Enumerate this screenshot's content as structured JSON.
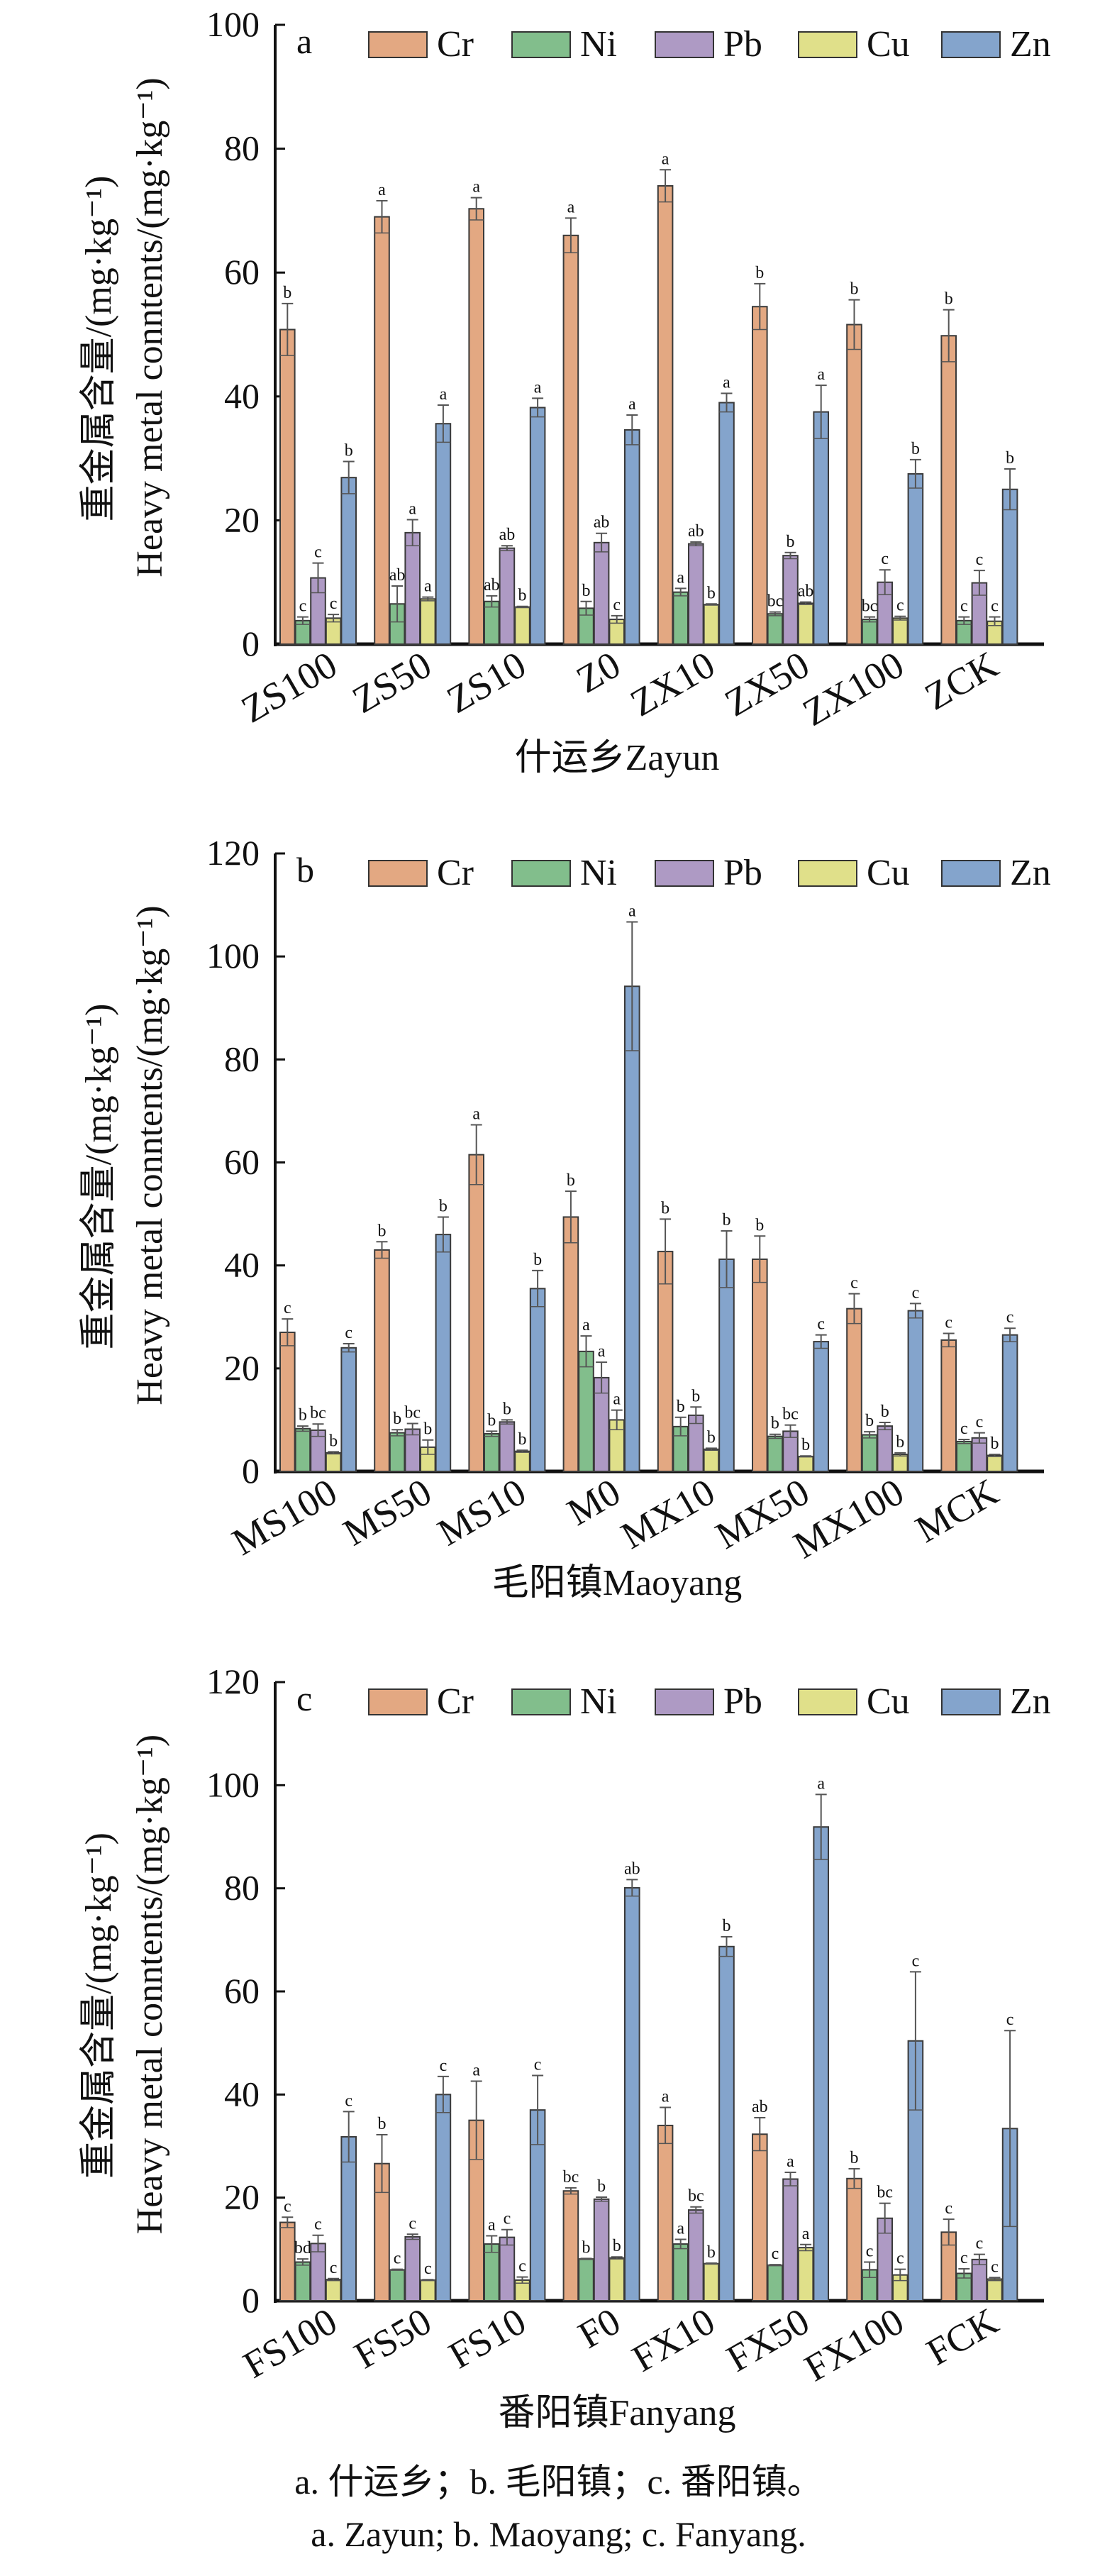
{
  "figure": {
    "caption_cn": "a. 什运乡；b. 毛阳镇；c. 番阳镇。",
    "caption_en": "a. Zayun; b. Maoyang; c. Fanyang."
  },
  "series_colors": {
    "Cr": "#E3A882",
    "Ni": "#82BE8C",
    "Pb": "#AE9AC4",
    "Cu": "#E0E08A",
    "Zn": "#84A4CC"
  },
  "chart_data": [
    {
      "type": "bar",
      "panel_label": "a",
      "title": "",
      "ylabel_cn": "重金属含量/(mg·kg⁻¹)",
      "ylabel_en": "Heavy metal conntents/(mg·kg⁻¹)",
      "xlabel": "什运乡Zayun",
      "ylim": [
        0,
        100
      ],
      "yticks": [
        0,
        20,
        40,
        60,
        80,
        100
      ],
      "legend": [
        "Cr",
        "Ni",
        "Pb",
        "Cu",
        "Zn"
      ],
      "legend_position": "top",
      "grid": false,
      "categories": [
        "ZS100",
        "ZS50",
        "ZS10",
        "Z0",
        "ZX10",
        "ZX50",
        "ZX100",
        "ZCK"
      ],
      "series": [
        {
          "name": "Cr",
          "values": [
            50.8,
            69.0,
            70.3,
            66.0,
            74.0,
            54.5,
            51.6,
            49.8
          ],
          "errors": [
            4.2,
            2.6,
            1.8,
            2.8,
            2.6,
            3.7,
            4.0,
            4.2
          ],
          "letters": [
            "b",
            "a",
            "a",
            "a",
            "a",
            "b",
            "b",
            "b"
          ]
        },
        {
          "name": "Ni",
          "values": [
            3.8,
            6.5,
            6.9,
            5.8,
            8.4,
            4.9,
            4.0,
            3.8
          ],
          "errors": [
            0.6,
            2.9,
            0.9,
            1.1,
            0.6,
            0.3,
            0.4,
            0.6
          ],
          "letters": [
            "c",
            "ab",
            "ab",
            "b",
            "a",
            "bc",
            "bc",
            "c"
          ]
        },
        {
          "name": "Pb",
          "values": [
            10.7,
            18.0,
            15.5,
            16.4,
            16.2,
            14.3,
            10.0,
            9.9
          ],
          "errors": [
            2.4,
            2.1,
            0.4,
            1.5,
            0.3,
            0.5,
            2.0,
            2.0
          ],
          "letters": [
            "c",
            "a",
            "ab",
            "ab",
            "ab",
            "b",
            "c",
            "c"
          ]
        },
        {
          "name": "Cu",
          "values": [
            4.2,
            7.3,
            6.0,
            4.0,
            6.4,
            6.6,
            4.2,
            3.7
          ],
          "errors": [
            0.6,
            0.3,
            0.1,
            0.6,
            0.1,
            0.2,
            0.3,
            0.7
          ],
          "letters": [
            "c",
            "a",
            "b",
            "c",
            "b",
            "ab",
            "c",
            "c"
          ]
        },
        {
          "name": "Zn",
          "values": [
            26.9,
            35.6,
            38.2,
            34.6,
            39.0,
            37.5,
            27.5,
            25.0
          ],
          "errors": [
            2.6,
            3.0,
            1.5,
            2.4,
            1.5,
            4.3,
            2.3,
            3.3
          ],
          "letters": [
            "b",
            "a",
            "a",
            "a",
            "a",
            "a",
            "b",
            "b"
          ]
        }
      ]
    },
    {
      "type": "bar",
      "panel_label": "b",
      "title": "",
      "ylabel_cn": "重金属含量/(mg·kg⁻¹)",
      "ylabel_en": "Heavy metal conntents/(mg·kg⁻¹)",
      "xlabel": "毛阳镇Maoyang",
      "ylim": [
        0,
        120
      ],
      "yticks": [
        0,
        20,
        40,
        60,
        80,
        100,
        120
      ],
      "legend": [
        "Cr",
        "Ni",
        "Pb",
        "Cu",
        "Zn"
      ],
      "legend_position": "top",
      "grid": false,
      "categories": [
        "MS100",
        "MS50",
        "MS10",
        "M0",
        "MX10",
        "MX50",
        "MX100",
        "MCK"
      ],
      "series": [
        {
          "name": "Cr",
          "values": [
            27.0,
            43.0,
            61.5,
            49.4,
            42.7,
            41.2,
            31.6,
            25.5
          ],
          "errors": [
            2.6,
            1.6,
            5.8,
            5.0,
            6.3,
            4.5,
            2.9,
            1.3
          ],
          "letters": [
            "c",
            "b",
            "a",
            "b",
            "b",
            "b",
            "c",
            "c"
          ]
        },
        {
          "name": "Ni",
          "values": [
            8.3,
            7.5,
            7.3,
            23.3,
            8.7,
            6.8,
            7.1,
            5.8
          ],
          "errors": [
            0.5,
            0.6,
            0.5,
            3.0,
            1.8,
            0.4,
            0.6,
            0.4
          ],
          "letters": [
            "b",
            "b",
            "b",
            "a",
            "b",
            "b",
            "b",
            "c"
          ]
        },
        {
          "name": "Pb",
          "values": [
            8.0,
            8.2,
            9.6,
            18.2,
            10.9,
            7.8,
            8.8,
            6.5
          ],
          "errors": [
            1.2,
            1.1,
            0.4,
            3.0,
            1.6,
            1.2,
            0.7,
            1.0
          ],
          "letters": [
            "bc",
            "bc",
            "b",
            "a",
            "b",
            "bc",
            "b",
            "c"
          ]
        },
        {
          "name": "Cu",
          "values": [
            3.6,
            4.7,
            3.9,
            10.0,
            4.3,
            2.9,
            3.3,
            3.1
          ],
          "errors": [
            0.2,
            1.4,
            0.2,
            1.9,
            0.2,
            0.1,
            0.3,
            0.2
          ],
          "letters": [
            "b",
            "b",
            "b",
            "a",
            "b",
            "b",
            "b",
            "b"
          ]
        },
        {
          "name": "Zn",
          "values": [
            24.0,
            46.0,
            35.5,
            94.2,
            41.2,
            25.2,
            31.2,
            26.5
          ],
          "errors": [
            0.8,
            3.4,
            3.5,
            12.5,
            5.5,
            1.3,
            1.4,
            1.3
          ],
          "letters": [
            "c",
            "b",
            "b",
            "a",
            "b",
            "c",
            "c",
            "c"
          ]
        }
      ]
    },
    {
      "type": "bar",
      "panel_label": "c",
      "title": "",
      "ylabel_cn": "重金属含量/(mg·kg⁻¹)",
      "ylabel_en": "Heavy metal conntents/(mg·kg⁻¹)",
      "xlabel": "番阳镇Fanyang",
      "ylim": [
        0,
        120
      ],
      "yticks": [
        0,
        20,
        40,
        60,
        80,
        100,
        120
      ],
      "legend": [
        "Cr",
        "Ni",
        "Pb",
        "Cu",
        "Zn"
      ],
      "legend_position": "top",
      "grid": false,
      "categories": [
        "FS100",
        "FS50",
        "FS10",
        "F0",
        "FX10",
        "FX50",
        "FX100",
        "FCK"
      ],
      "series": [
        {
          "name": "Cr",
          "values": [
            15.2,
            26.6,
            35.0,
            21.3,
            34.0,
            32.3,
            23.7,
            13.3
          ],
          "errors": [
            1.0,
            5.6,
            7.6,
            0.6,
            3.5,
            3.2,
            1.9,
            2.5
          ],
          "letters": [
            "c",
            "b",
            "a",
            "bc",
            "a",
            "ab",
            "b",
            "c"
          ]
        },
        {
          "name": "Ni",
          "values": [
            7.5,
            6.0,
            11.0,
            8.1,
            11.0,
            6.9,
            6.0,
            5.3
          ],
          "errors": [
            0.6,
            0.1,
            1.6,
            0.1,
            0.9,
            0.1,
            1.5,
            0.9
          ],
          "letters": [
            "bd",
            "c",
            "a",
            "b",
            "a",
            "c",
            "c",
            "c"
          ]
        },
        {
          "name": "Pb",
          "values": [
            11.1,
            12.4,
            12.3,
            19.7,
            17.6,
            23.6,
            16.0,
            8.0
          ],
          "errors": [
            1.6,
            0.5,
            1.5,
            0.4,
            0.6,
            1.3,
            2.9,
            1.0
          ],
          "letters": [
            "c",
            "c",
            "c",
            "b",
            "bc",
            "a",
            "bc",
            "c"
          ]
        },
        {
          "name": "Cu",
          "values": [
            4.1,
            4.0,
            4.0,
            8.3,
            7.2,
            10.3,
            5.0,
            4.2
          ],
          "errors": [
            0.2,
            0.1,
            0.6,
            0.2,
            0.1,
            0.6,
            1.1,
            0.3
          ],
          "letters": [
            "c",
            "c",
            "c",
            "b",
            "b",
            "a",
            "c",
            "c"
          ]
        },
        {
          "name": "Zn",
          "values": [
            31.8,
            40.0,
            37.0,
            80.1,
            68.7,
            91.9,
            50.4,
            33.4
          ],
          "errors": [
            4.9,
            3.5,
            6.7,
            1.6,
            1.9,
            6.3,
            13.4,
            19.0
          ],
          "letters": [
            "c",
            "c",
            "c",
            "ab",
            "b",
            "a",
            "c",
            "c"
          ]
        }
      ]
    }
  ]
}
